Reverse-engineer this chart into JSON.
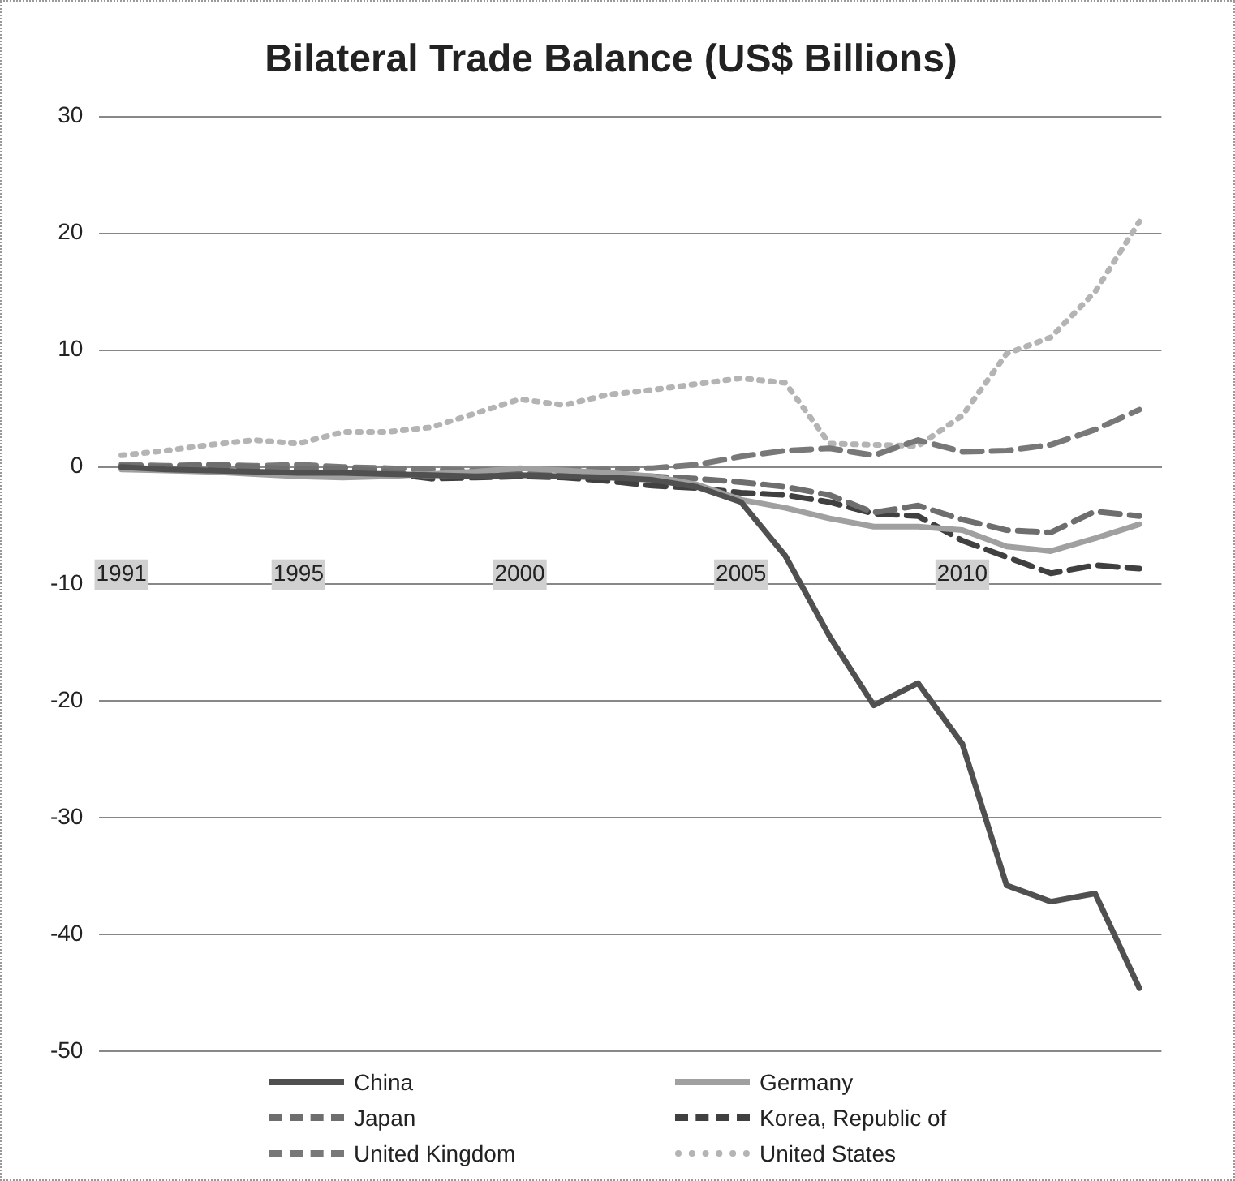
{
  "chart_data": {
    "type": "line",
    "title": "Bilateral Trade Balance (US$ Billions)",
    "categories": [
      "1991",
      null,
      null,
      null,
      "1995",
      null,
      null,
      null,
      null,
      "2000",
      null,
      null,
      null,
      null,
      "2005",
      null,
      null,
      null,
      null,
      "2010",
      null,
      null,
      null,
      null
    ],
    "series": [
      {
        "name": "China",
        "color": "#505050",
        "line_style": "solid",
        "values": [
          0,
          -0.2,
          -0.3,
          -0.4,
          -0.5,
          -0.5,
          -0.6,
          -0.7,
          -0.8,
          -0.7,
          -0.8,
          -0.9,
          -1.1,
          -1.7,
          -3,
          -7.6,
          -14.5,
          -20.4,
          -18.5,
          -23.7,
          -35.8,
          -37.2,
          -36.5,
          -44.6
        ]
      },
      {
        "name": "Germany",
        "color": "#a0a0a0",
        "line_style": "solid",
        "values": [
          -0.2,
          -0.3,
          -0.4,
          -0.6,
          -0.8,
          -0.9,
          -0.8,
          -0.6,
          -0.4,
          -0.1,
          -0.3,
          -0.5,
          -0.8,
          -1.5,
          -2.8,
          -3.5,
          -4.4,
          -5.1,
          -5.1,
          -5.4,
          -6.8,
          -7.2,
          -6.1,
          -4.9
        ]
      },
      {
        "name": "Japan",
        "color": "#6e6e6e",
        "line_style": "dashed",
        "values": [
          0.1,
          0,
          0.2,
          0,
          -0.2,
          -0.1,
          -0.4,
          -0.8,
          -0.7,
          -0.6,
          -0.6,
          -0.7,
          -0.8,
          -1,
          -1.3,
          -1.7,
          -2.4,
          -3.9,
          -3.3,
          -4.5,
          -5.4,
          -5.6,
          -3.8,
          -4.2
        ]
      },
      {
        "name": "Korea, Republic of",
        "color": "#404040",
        "line_style": "dashed",
        "values": [
          -0.1,
          -0.2,
          -0.3,
          -0.4,
          -0.6,
          -0.7,
          -0.5,
          -1,
          -0.9,
          -0.8,
          -0.9,
          -1.2,
          -1.6,
          -1.8,
          -2.2,
          -2.4,
          -3,
          -4,
          -4.2,
          -6.3,
          -7.7,
          -9.1,
          -8.4,
          -8.7
        ]
      },
      {
        "name": "United Kingdom",
        "color": "#787878",
        "line_style": "dashed",
        "values": [
          0.2,
          0.1,
          0.2,
          0.1,
          0.2,
          0,
          -0.1,
          -0.2,
          -0.3,
          -0.2,
          -0.3,
          -0.2,
          -0.1,
          0.2,
          0.9,
          1.4,
          1.6,
          1,
          2.3,
          1.3,
          1.4,
          1.9,
          3.2,
          4.9
        ]
      },
      {
        "name": "United States",
        "color": "#b4b4b4",
        "line_style": "dotted",
        "values": [
          1,
          1.4,
          1.9,
          2.3,
          2,
          3,
          3,
          3.4,
          4.6,
          5.8,
          5.3,
          6.2,
          6.6,
          7.1,
          7.6,
          7.2,
          2,
          1.9,
          1.8,
          4.4,
          9.7,
          11.1,
          15,
          21
        ]
      }
    ],
    "ylim": [
      -50,
      30
    ],
    "yticks": [
      -50,
      -40,
      -30,
      -20,
      -10,
      0,
      10,
      20,
      30
    ],
    "grid": "y",
    "legend": "bottom"
  }
}
